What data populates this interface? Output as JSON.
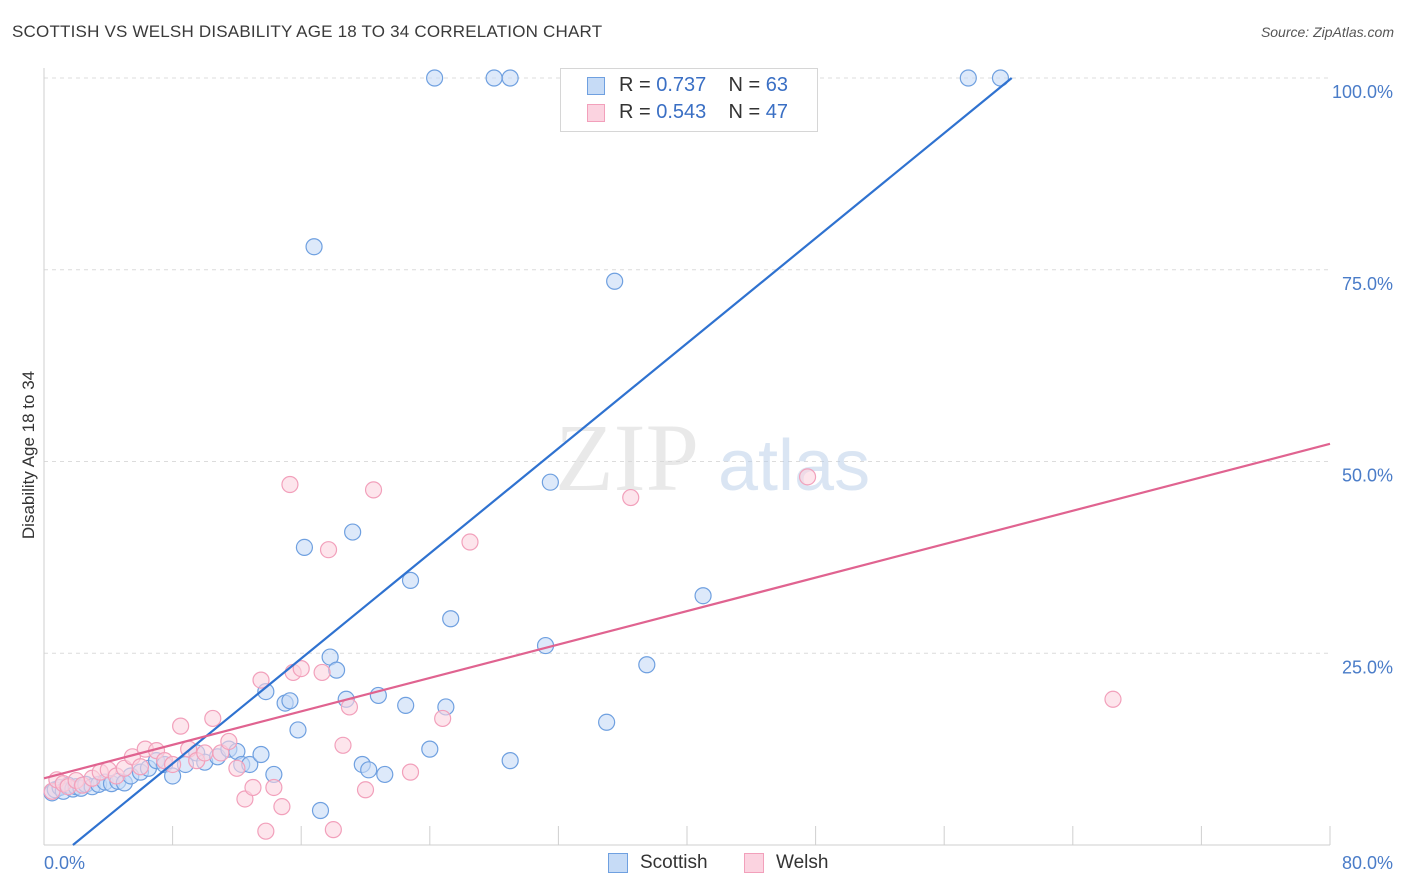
{
  "title": "SCOTTISH VS WELSH DISABILITY AGE 18 TO 34 CORRELATION CHART",
  "source": "Source: ZipAtlas.com",
  "watermark": "ZIPatlas",
  "legend": {
    "rows": [
      {
        "r_label": "R = ",
        "r_value": "0.737",
        "n_label": "N = ",
        "n_value": "63",
        "color": "#6fa0e0"
      },
      {
        "r_label": "R = ",
        "r_value": "0.543",
        "n_label": "N = ",
        "n_value": "47",
        "color": "#f2a0bb"
      }
    ]
  },
  "bottom_legend": [
    {
      "label": "Scottish",
      "color": "#6fa0e0"
    },
    {
      "label": "Welsh",
      "color": "#f2a0bb"
    }
  ],
  "chart_data": {
    "type": "scatter",
    "title": "SCOTTISH VS WELSH DISABILITY AGE 18 TO 34 CORRELATION CHART",
    "xlabel": "",
    "ylabel": "Disability Age 18 to 34",
    "xlim": [
      0,
      80
    ],
    "ylim": [
      0,
      100
    ],
    "x_tick_labels": [
      {
        "value": 0,
        "label": "0.0%"
      },
      {
        "value": 80,
        "label": "80.0%"
      }
    ],
    "y_tick_labels": [
      {
        "value": 100,
        "label": "100.0%"
      },
      {
        "value": 75,
        "label": "75.0%"
      },
      {
        "value": 50,
        "label": "50.0%"
      },
      {
        "value": 25,
        "label": "25.0%"
      }
    ],
    "series": [
      {
        "name": "Scottish",
        "color": "#6fa0e0",
        "line_color": "#2f72d0",
        "trendline": [
          [
            1.8,
            0
          ],
          [
            60.2,
            100
          ]
        ],
        "points": [
          [
            0.5,
            6.8
          ],
          [
            0.7,
            7.2
          ],
          [
            1.0,
            7.5
          ],
          [
            1.2,
            7.0
          ],
          [
            1.5,
            7.8
          ],
          [
            1.8,
            7.3
          ],
          [
            2.0,
            7.6
          ],
          [
            2.3,
            7.4
          ],
          [
            2.6,
            7.9
          ],
          [
            3.0,
            7.6
          ],
          [
            3.4,
            7.9
          ],
          [
            3.8,
            8.2
          ],
          [
            4.2,
            8.0
          ],
          [
            4.6,
            8.3
          ],
          [
            5.0,
            8.1
          ],
          [
            5.4,
            9.0
          ],
          [
            6.0,
            9.5
          ],
          [
            6.5,
            10.0
          ],
          [
            7.0,
            11.0
          ],
          [
            7.5,
            10.5
          ],
          [
            8.0,
            9.0
          ],
          [
            8.8,
            10.5
          ],
          [
            9.5,
            12.0
          ],
          [
            10.0,
            10.8
          ],
          [
            10.8,
            11.5
          ],
          [
            11.5,
            12.5
          ],
          [
            12.0,
            12.2
          ],
          [
            12.3,
            10.5
          ],
          [
            12.8,
            10.5
          ],
          [
            13.5,
            11.8
          ],
          [
            13.8,
            20.0
          ],
          [
            14.3,
            9.2
          ],
          [
            15.0,
            18.5
          ],
          [
            15.3,
            18.8
          ],
          [
            15.8,
            15.0
          ],
          [
            16.2,
            38.8
          ],
          [
            16.8,
            78.0
          ],
          [
            17.2,
            4.5
          ],
          [
            17.8,
            24.5
          ],
          [
            18.2,
            22.8
          ],
          [
            18.8,
            19.0
          ],
          [
            19.2,
            40.8
          ],
          [
            19.8,
            10.5
          ],
          [
            20.2,
            9.8
          ],
          [
            20.8,
            19.5
          ],
          [
            21.2,
            9.2
          ],
          [
            22.5,
            18.2
          ],
          [
            22.8,
            34.5
          ],
          [
            24.0,
            12.5
          ],
          [
            25.0,
            18.0
          ],
          [
            25.3,
            29.5
          ],
          [
            29.0,
            11.0
          ],
          [
            31.2,
            26.0
          ],
          [
            31.5,
            47.3
          ],
          [
            35.5,
            73.5
          ],
          [
            35.0,
            16.0
          ],
          [
            37.5,
            23.5
          ],
          [
            41.0,
            32.5
          ],
          [
            24.3,
            100.0
          ],
          [
            28.0,
            100.0
          ],
          [
            29.0,
            100.0
          ],
          [
            57.5,
            100.0
          ],
          [
            59.5,
            100.0
          ]
        ]
      },
      {
        "name": "Welsh",
        "color": "#f2a0bb",
        "line_color": "#e06390",
        "trendline": [
          [
            0,
            8.7
          ],
          [
            80,
            52.3
          ]
        ],
        "points": [
          [
            0.5,
            7.0
          ],
          [
            0.8,
            8.5
          ],
          [
            1.2,
            8.0
          ],
          [
            1.5,
            7.6
          ],
          [
            2.0,
            8.4
          ],
          [
            2.4,
            7.8
          ],
          [
            3.0,
            8.7
          ],
          [
            3.5,
            9.5
          ],
          [
            4.0,
            9.8
          ],
          [
            4.5,
            9.0
          ],
          [
            5.0,
            10.0
          ],
          [
            5.5,
            11.5
          ],
          [
            6.0,
            10.2
          ],
          [
            6.3,
            12.5
          ],
          [
            7.0,
            12.3
          ],
          [
            7.5,
            11.0
          ],
          [
            8.0,
            10.5
          ],
          [
            8.5,
            15.5
          ],
          [
            9.0,
            12.5
          ],
          [
            9.5,
            11.0
          ],
          [
            10.0,
            12.0
          ],
          [
            10.5,
            16.5
          ],
          [
            11.0,
            12.0
          ],
          [
            11.5,
            13.5
          ],
          [
            12.0,
            10.0
          ],
          [
            12.5,
            6.0
          ],
          [
            13.0,
            7.5
          ],
          [
            13.5,
            21.5
          ],
          [
            13.8,
            1.8
          ],
          [
            14.3,
            7.5
          ],
          [
            14.8,
            5.0
          ],
          [
            15.3,
            47.0
          ],
          [
            15.5,
            22.5
          ],
          [
            16.0,
            23.0
          ],
          [
            17.3,
            22.5
          ],
          [
            17.7,
            38.5
          ],
          [
            18.0,
            2.0
          ],
          [
            18.6,
            13.0
          ],
          [
            19.0,
            18.0
          ],
          [
            20.0,
            7.2
          ],
          [
            20.5,
            46.3
          ],
          [
            22.8,
            9.5
          ],
          [
            24.8,
            16.5
          ],
          [
            26.5,
            39.5
          ],
          [
            36.5,
            45.3
          ],
          [
            47.5,
            48.0
          ],
          [
            66.5,
            19.0
          ]
        ]
      }
    ]
  }
}
